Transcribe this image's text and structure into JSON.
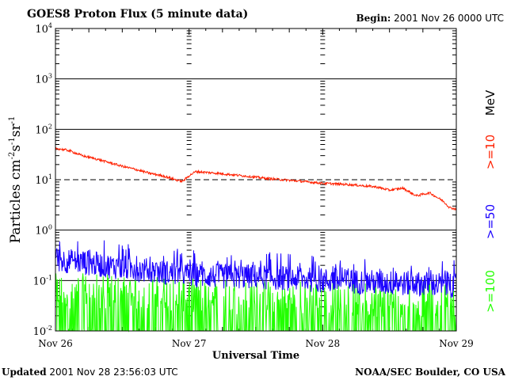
{
  "header": {
    "title": "GOES8 Proton Flux (5 minute data)",
    "begin_label": "Begin:",
    "begin_value": "2001 Nov 26 0000 UTC"
  },
  "footer": {
    "updated_label": "Updated",
    "updated_value": "2001 Nov 28 23:56:03 UTC",
    "source": "NOAA/SEC Boulder, CO USA"
  },
  "chart_data": {
    "type": "line",
    "title": "GOES8 Proton Flux (5 minute data)",
    "xlabel": "Universal Time",
    "ylabel": {
      "base": "Particles cm",
      "parts": [
        {
          "text": "-2",
          "sup": true
        },
        {
          "text": "s",
          "sup": false
        },
        {
          "text": "-1",
          "sup": true
        },
        {
          "text": "sr",
          "sup": false
        },
        {
          "text": "-1",
          "sup": true
        }
      ]
    },
    "yscale": "log",
    "ylim": [
      0.01,
      10000
    ],
    "xlim": [
      0,
      3
    ],
    "x_unit": "days since 2001 Nov 26 0000 UTC",
    "x_ticks": [
      {
        "value": 0,
        "label": "Nov 26"
      },
      {
        "value": 1,
        "label": "Nov 27"
      },
      {
        "value": 2,
        "label": "Nov 28"
      },
      {
        "value": 3,
        "label": "Nov 29"
      }
    ],
    "y_ticks": [
      {
        "value": 10000,
        "base": "10",
        "exp": "4"
      },
      {
        "value": 1000,
        "base": "10",
        "exp": "3"
      },
      {
        "value": 100,
        "base": "10",
        "exp": "2"
      },
      {
        "value": 10,
        "base": "10",
        "exp": "1"
      },
      {
        "value": 1,
        "base": "10",
        "exp": "0"
      },
      {
        "value": 0.1,
        "base": "10",
        "exp": "-1"
      },
      {
        "value": 0.01,
        "base": "10",
        "exp": "-2"
      }
    ],
    "reference_lines": [
      {
        "value": 10,
        "style": "dashed"
      }
    ],
    "energy_unit": "MeV",
    "series": [
      {
        "name": ">=10",
        "color": "#ff2000",
        "x": [
          0,
          0.1,
          0.2,
          0.3,
          0.4,
          0.5,
          0.6,
          0.7,
          0.8,
          0.9,
          0.95,
          1.0,
          1.05,
          1.2,
          1.4,
          1.6,
          1.8,
          2.0,
          2.2,
          2.4,
          2.5,
          2.6,
          2.7,
          2.8,
          2.9,
          2.95,
          3.0
        ],
        "values": [
          42,
          38,
          30,
          26,
          22,
          18.5,
          16,
          13.5,
          12,
          10,
          9.2,
          12,
          14.5,
          13.5,
          12,
          10.5,
          9.5,
          8.5,
          8,
          7.2,
          6.2,
          6.8,
          4.8,
          5.5,
          3.8,
          2.8,
          2.6
        ]
      },
      {
        "name": ">=50",
        "color": "#1a00ff",
        "x": [
          0,
          0.25,
          0.5,
          0.75,
          1.0,
          1.25,
          1.5,
          1.75,
          2.0,
          2.25,
          2.5,
          2.75,
          3.0
        ],
        "values": [
          0.26,
          0.22,
          0.18,
          0.15,
          0.13,
          0.12,
          0.12,
          0.11,
          0.1,
          0.095,
          0.09,
          0.085,
          0.08
        ]
      },
      {
        "name": ">=100",
        "color": "#22ff00",
        "x": [
          0,
          0.25,
          0.5,
          0.75,
          1.0,
          1.25,
          1.5,
          1.75,
          2.0,
          2.25,
          2.5,
          2.75,
          3.0
        ],
        "values": [
          0.045,
          0.045,
          0.042,
          0.04,
          0.038,
          0.036,
          0.034,
          0.033,
          0.032,
          0.03,
          0.03,
          0.03,
          0.03
        ]
      }
    ]
  }
}
